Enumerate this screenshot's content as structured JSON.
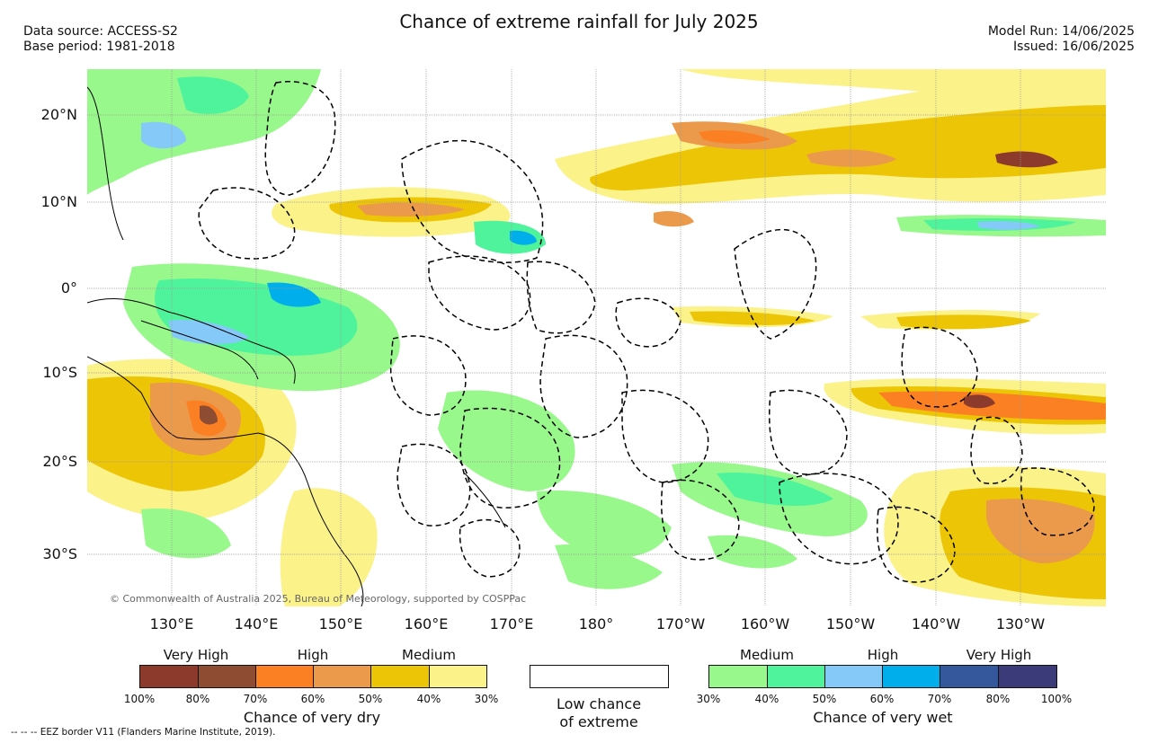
{
  "header": {
    "title": "Chance of extreme rainfall for July 2025",
    "source_line1": "Data source: ACCESS-S2",
    "source_line2": "Base period: 1981-2018",
    "run_line1": "Model Run: 14/06/2025",
    "run_line2": "Issued: 16/06/2025"
  },
  "map": {
    "copyright": "© Commonwealth of Australia 2025, Bureau of Meteorology, supported by COSPPac",
    "lat_labels": [
      "20°N",
      "10°N",
      "0°",
      "10°S",
      "20°S",
      "30°S"
    ],
    "lon_labels": [
      "130°E",
      "140°E",
      "150°E",
      "160°E",
      "170°E",
      "180°",
      "170°W",
      "160°W",
      "150°W",
      "140°W",
      "130°W"
    ]
  },
  "legend_dry": {
    "title": "Chance of very dry",
    "categories": [
      "Very High",
      "High",
      "Medium"
    ],
    "ticks": [
      "100%",
      "80%",
      "70%",
      "60%",
      "50%",
      "40%",
      "30%"
    ],
    "colors": [
      "#8b3a2b",
      "#8e4c33",
      "#fb8024",
      "#ea9a4a",
      "#ecc606",
      "#fbf28a"
    ]
  },
  "legend_low": {
    "line1": "Low chance",
    "line2": "of extreme"
  },
  "legend_wet": {
    "title": "Chance of very wet",
    "categories": [
      "Medium",
      "High",
      "Very High"
    ],
    "ticks": [
      "30%",
      "40%",
      "50%",
      "60%",
      "70%",
      "80%",
      "100%"
    ],
    "colors": [
      "#98f88b",
      "#4ef39b",
      "#84c9f8",
      "#00aeeb",
      "#34589b",
      "#3c3b7a"
    ]
  },
  "footer": {
    "text": "-- -- -- EEZ border V11 (Flanders Marine Institute, 2019)."
  }
}
